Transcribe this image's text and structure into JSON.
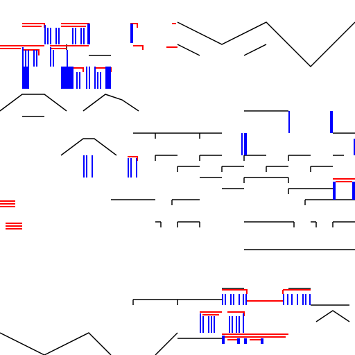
{
  "canvas": {
    "background": "#ffffff"
  },
  "palette": {
    "line": "#000000",
    "accent_red": "#ff0000",
    "accent_blue": "#0000ff"
  }
}
